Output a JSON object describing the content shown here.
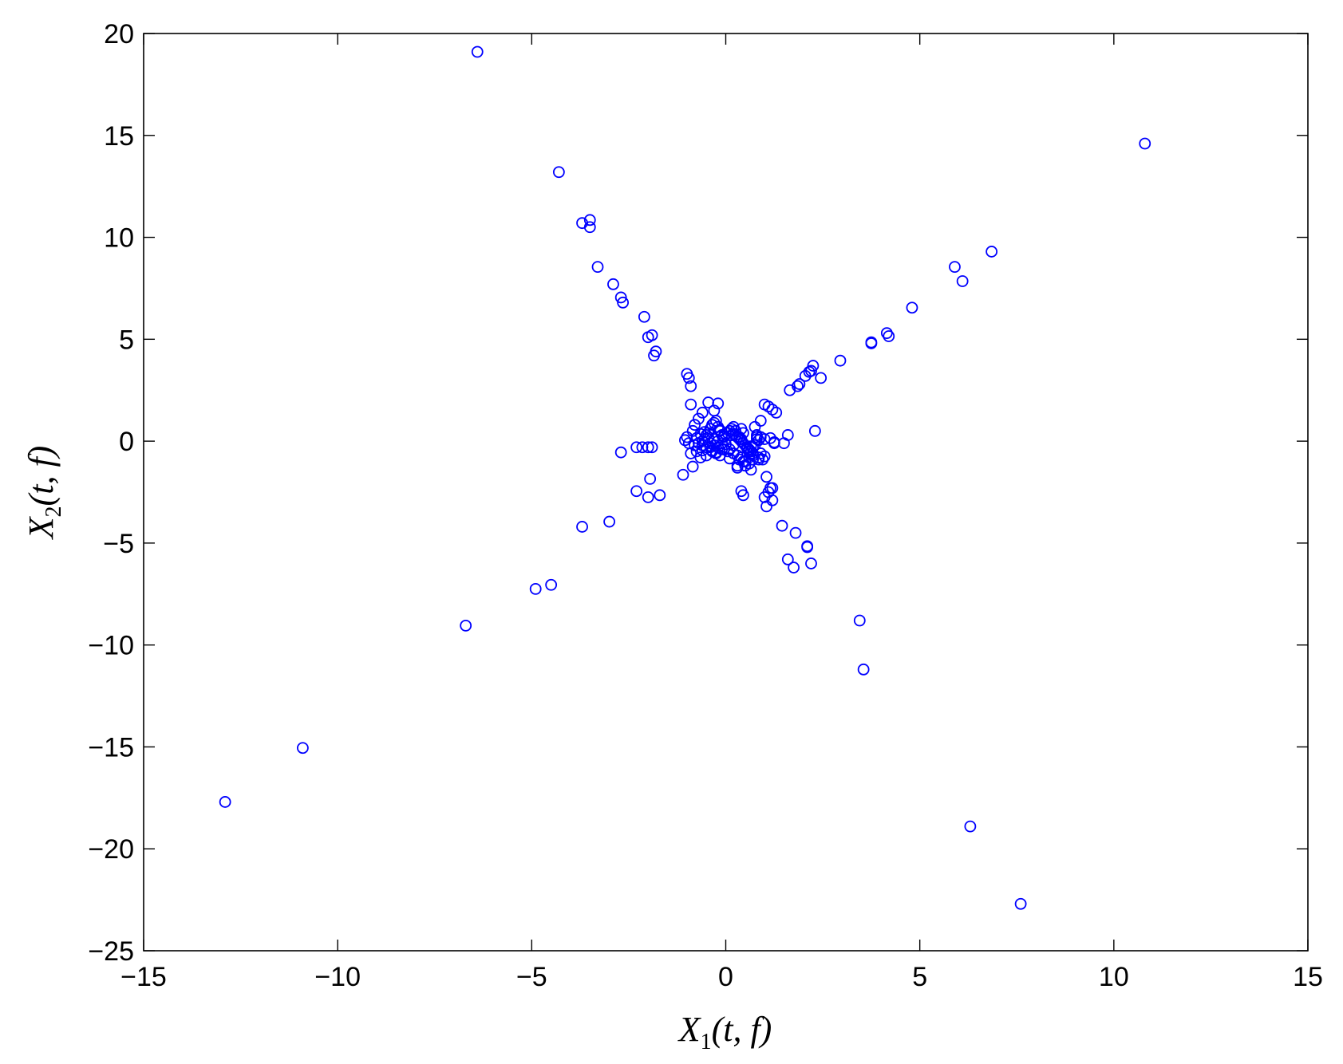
{
  "chart_data": {
    "type": "scatter",
    "title": "",
    "xlabel": {
      "main": "X",
      "sub": "1",
      "args": "(t, f)"
    },
    "ylabel": {
      "main": "X",
      "sub": "2",
      "args": "(t, f)"
    },
    "xlim": [
      -15,
      15
    ],
    "ylim": [
      -25,
      20
    ],
    "xticks": [
      -15,
      -10,
      -5,
      0,
      5,
      10,
      15
    ],
    "yticks": [
      -25,
      -20,
      -15,
      -10,
      -5,
      0,
      5,
      10,
      15,
      20
    ],
    "xtick_labels": [
      "−15",
      "−10",
      "−5",
      "0",
      "5",
      "10",
      "15"
    ],
    "ytick_labels": [
      "−25",
      "−20",
      "−15",
      "−10",
      "−5",
      "0",
      "5",
      "10",
      "15",
      "20"
    ],
    "grid": false,
    "legend": "none",
    "marker": "open-circle",
    "color": "#0000ff",
    "series": [
      {
        "x": [
          -6.4,
          -4.3,
          -3.7,
          -3.5,
          -3.5,
          -3.3,
          -2.9,
          -2.7,
          -2.65,
          -2.1,
          -2.0,
          -1.9,
          -1.8,
          -1.85,
          -1.0,
          -0.95,
          -0.9,
          -0.9,
          -0.45,
          -0.2,
          -0.3,
          -0.6,
          -0.7,
          -0.8,
          -0.85,
          -1.0,
          -1.05,
          -0.95,
          -0.75,
          -0.9,
          -0.65,
          -0.5,
          -2.7,
          -2.3,
          -2.15,
          -2.0,
          -1.9,
          -1.95,
          -2.3,
          -2.0,
          -1.7,
          -3.0,
          -3.7,
          -4.9,
          -4.5,
          -6.7,
          -10.9,
          -12.9,
          -0.85,
          -1.1,
          -0.4,
          -0.35,
          -0.3,
          -0.25,
          -0.2,
          -0.15,
          -0.1,
          -0.05,
          -0.45,
          -0.5,
          -0.55,
          -0.6,
          -0.4,
          -0.3,
          -0.2,
          -0.1,
          -0.35,
          -0.25,
          -0.15,
          -0.5,
          -0.6,
          -0.7,
          -0.45,
          -0.3,
          -0.2,
          -0.1,
          -0.4,
          -0.55,
          -0.65,
          -0.35,
          -0.25,
          -0.15,
          -0.05,
          -0.75,
          -0.8,
          -0.6,
          0.05,
          0.1,
          0.15,
          0.2,
          0.25,
          0.3,
          0.35,
          0.4,
          0.45,
          0.5,
          0.55,
          0.6,
          0.65,
          0.7,
          0.75,
          0.8,
          0.1,
          0.2,
          0.3,
          0.4,
          0.5,
          0.6,
          0.7,
          0.15,
          0.25,
          0.35,
          0.45,
          0.55,
          0.65,
          0.05,
          0.3,
          0.5,
          0.6,
          0.7,
          0.8,
          0.4,
          0.2,
          0.0,
          -0.05,
          0.35,
          0.1,
          0.45,
          1.0,
          1.1,
          1.2,
          1.25,
          1.3,
          1.05,
          1.15,
          1.0,
          1.1,
          1.2,
          1.05,
          1.45,
          1.8,
          2.1,
          2.1,
          2.2,
          1.6,
          1.75,
          0.4,
          0.45,
          1.0,
          0.9,
          0.9,
          0.85,
          1.0,
          1.15,
          1.25,
          0.85,
          0.95,
          1.5,
          1.6,
          2.3,
          1.65,
          1.85,
          1.9,
          2.05,
          2.15,
          2.25,
          2.2,
          2.45,
          2.95,
          3.75,
          3.75,
          4.15,
          4.2,
          4.8,
          5.9,
          6.1,
          6.85,
          10.8,
          3.45,
          3.55,
          6.3,
          7.6,
          0.6,
          0.75,
          0.9,
          0.65,
          0.5,
          0.3,
          0.85,
          0.7,
          0.4,
          0.55,
          0.2,
          0.8,
          1.2
        ],
        "y": [
          19.1,
          13.2,
          10.7,
          10.85,
          10.5,
          8.55,
          7.7,
          7.05,
          6.8,
          6.1,
          5.1,
          5.2,
          4.4,
          4.2,
          3.3,
          3.1,
          2.7,
          1.8,
          1.9,
          1.85,
          1.5,
          1.4,
          1.1,
          0.8,
          0.5,
          0.2,
          0.05,
          -0.1,
          -0.5,
          -0.6,
          -0.8,
          -0.7,
          -0.55,
          -0.3,
          -0.3,
          -0.3,
          -0.3,
          -1.85,
          -2.45,
          -2.75,
          -2.65,
          -3.95,
          -4.2,
          -7.25,
          -7.05,
          -9.05,
          -15.05,
          -17.7,
          -1.25,
          -1.65,
          0.6,
          0.8,
          0.9,
          1.0,
          0.7,
          0.5,
          0.3,
          0.2,
          0.4,
          0.3,
          0.1,
          0.0,
          -0.1,
          -0.2,
          -0.3,
          -0.4,
          -0.5,
          -0.6,
          -0.7,
          -0.3,
          -0.2,
          -0.1,
          0.2,
          0.1,
          0.0,
          -0.1,
          -0.3,
          0.45,
          0.35,
          -0.45,
          -0.55,
          0.55,
          0.25,
          0.15,
          -0.2,
          -0.45,
          0.4,
          0.5,
          0.6,
          0.7,
          0.3,
          0.2,
          0.1,
          0.0,
          -0.1,
          -0.2,
          -0.3,
          -0.4,
          -0.5,
          -0.6,
          -0.2,
          0.1,
          -0.4,
          -0.6,
          -0.7,
          -0.8,
          -1.0,
          -1.1,
          -0.9,
          0.3,
          0.5,
          0.2,
          0.4,
          -0.35,
          -0.25,
          -0.5,
          -1.3,
          -1.2,
          -0.8,
          -0.3,
          0.2,
          0.6,
          0.35,
          -0.15,
          -0.4,
          -0.9,
          -0.85,
          -1.0,
          1.8,
          1.7,
          1.55,
          -0.05,
          1.4,
          -1.75,
          -2.3,
          -2.75,
          -2.5,
          -2.3,
          -3.2,
          -4.15,
          -4.5,
          -5.2,
          -5.15,
          -6.0,
          -5.8,
          -6.2,
          -2.45,
          -2.65,
          -0.75,
          0.2,
          -0.6,
          -0.8,
          0.1,
          0.15,
          -0.1,
          0.05,
          -0.9,
          -0.1,
          0.3,
          0.5,
          2.5,
          2.7,
          2.8,
          3.2,
          3.4,
          3.7,
          3.45,
          3.1,
          3.95,
          4.85,
          4.8,
          5.3,
          5.15,
          6.55,
          8.55,
          7.85,
          9.3,
          14.6,
          -8.8,
          -11.2,
          -18.9,
          -22.7,
          -0.5,
          0.7,
          1.0,
          -1.4,
          -1.2,
          -1.2,
          -0.9,
          -0.7,
          0.1,
          -0.3,
          -0.2,
          0.3,
          -2.9
        ]
      }
    ]
  }
}
